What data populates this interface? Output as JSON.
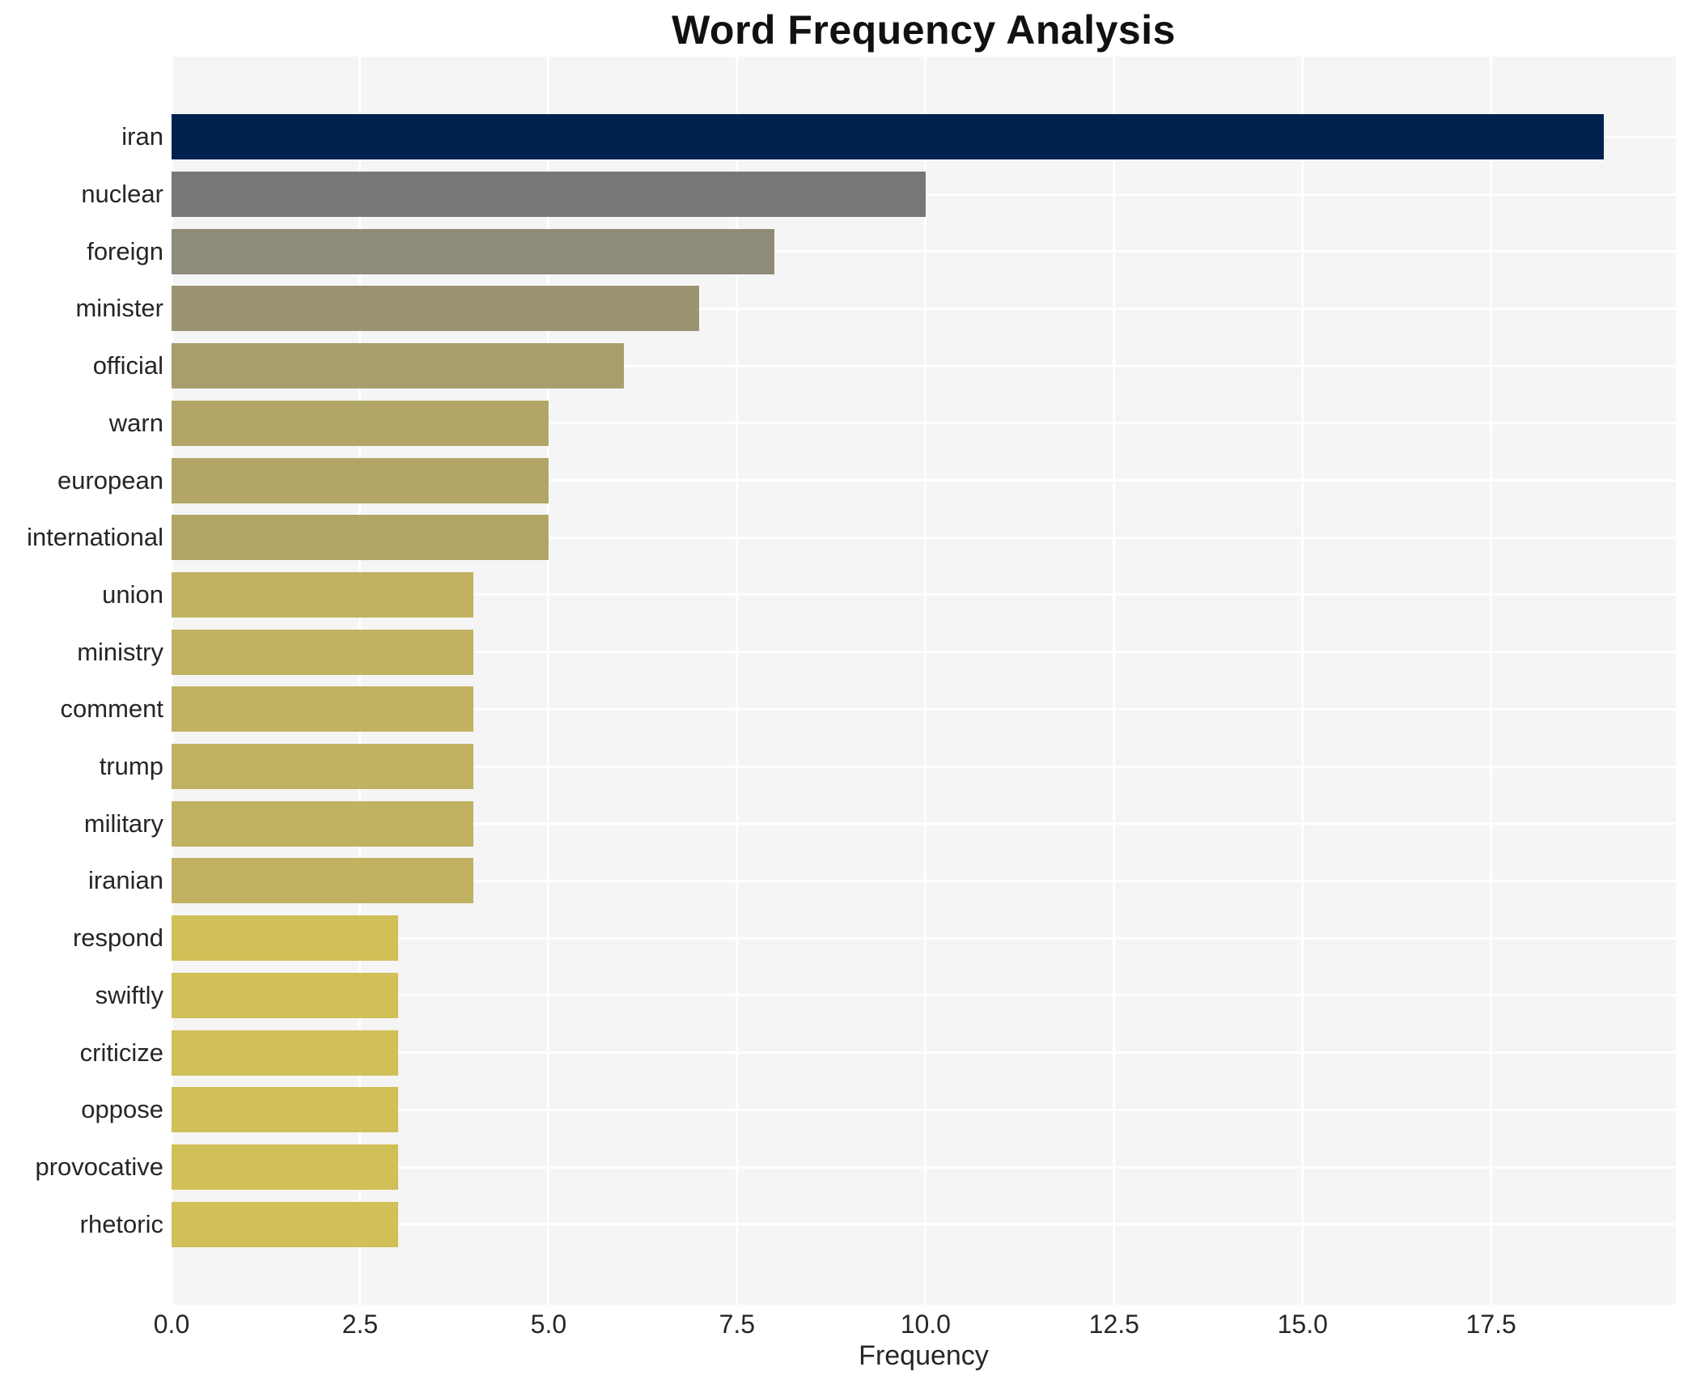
{
  "title": "Word Frequency Analysis",
  "chart_data": {
    "type": "bar",
    "orientation": "horizontal",
    "title": "Word Frequency Analysis",
    "xlabel": "Frequency",
    "ylabel": "",
    "grid": "white on light-gray panel, vertical ticks + horizontal category lines",
    "legend": "none",
    "xlim": [
      0,
      19.95
    ],
    "xtick_labels": [
      "0.0",
      "2.5",
      "5.0",
      "7.5",
      "10.0",
      "12.5",
      "15.0",
      "17.5"
    ],
    "xtick_values": [
      0,
      2.5,
      5,
      7.5,
      10,
      12.5,
      15,
      17.5
    ],
    "categories": [
      "iran",
      "nuclear",
      "foreign",
      "minister",
      "official",
      "warn",
      "european",
      "international",
      "union",
      "ministry",
      "comment",
      "trump",
      "military",
      "iranian",
      "respond",
      "swiftly",
      "criticize",
      "oppose",
      "provocative",
      "rhetoric"
    ],
    "values": [
      19,
      10,
      8,
      7,
      6,
      5,
      5,
      5,
      4,
      4,
      4,
      4,
      4,
      4,
      3,
      3,
      3,
      3,
      3,
      3
    ],
    "bar_colors": [
      "#00224e",
      "#777776",
      "#8f8b79",
      "#9c9372",
      "#a89e6d",
      "#b1a667",
      "#b1a667",
      "#b1a667",
      "#c0b261",
      "#c0b261",
      "#c0b261",
      "#c0b261",
      "#c0b261",
      "#c0b261",
      "#d1bf58",
      "#d1bf58",
      "#d1bf58",
      "#d1bf58",
      "#d1bf58",
      "#d1bf58"
    ],
    "panel_background": "#f5f5f6",
    "gridline_color": "#ffffff",
    "text_color": "#262626",
    "title_color": "#111111"
  }
}
